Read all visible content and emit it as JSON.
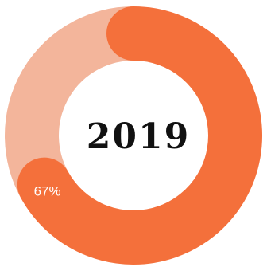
{
  "chart_data": {
    "type": "pie",
    "center_label": "2019",
    "slices": [
      {
        "label": "67%",
        "value": 67,
        "color": "#f4703b"
      },
      {
        "value": 33,
        "color": "#f3b59b"
      }
    ]
  },
  "colors": {
    "background": "#ffffff",
    "title": "#111111",
    "slice_label": "#ffffff"
  }
}
